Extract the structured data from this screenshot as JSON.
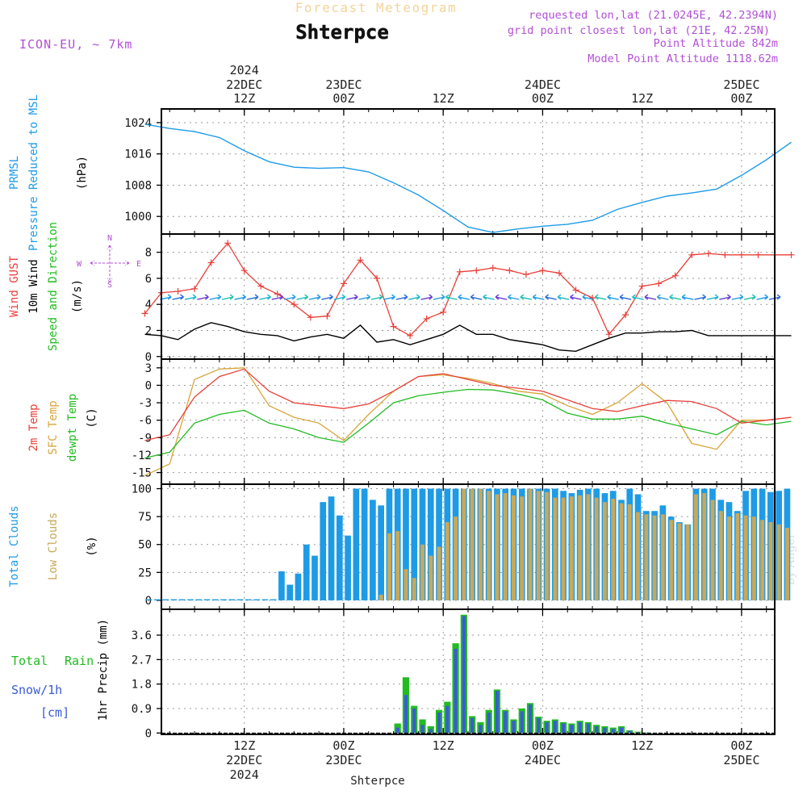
{
  "header": {
    "top_title": "Forecast Meteogram",
    "location": "Shterpce",
    "model": "ICON-EU, ~ 7km",
    "requested": "requested lon,lat (21.0245E, 42.2394N)",
    "grid": "grid point closest lon,lat (21E, 42.25N)",
    "point_alt": "Point Altitude 842m",
    "model_alt": "Model Point Altitude 1118.62m",
    "watermark": "by Angel",
    "bottom_label": "Shterpce"
  },
  "colors": {
    "pressure": "#1e9be6",
    "gust": "#e8403a",
    "wind": "#000000",
    "temp": "#e8403a",
    "sfc": "#d9a53a",
    "dewpt": "#22bb22",
    "total_clouds": "#1e9be6",
    "low_clouds": "#c8a85a",
    "rain": "#22bb22",
    "snow": "#3a5ad6",
    "purple": "#b24fd6"
  },
  "chart_data": [
    {
      "type": "line",
      "id": "pressure",
      "ylabel_lines": [
        "PRMSL",
        "Pressure Reduced to MSL"
      ],
      "unit": "(hPa)",
      "yticks": [
        1000,
        1008,
        1016,
        1024
      ],
      "ylim": [
        995.5,
        1027.5
      ],
      "x_hours": [
        0,
        3,
        6,
        9,
        12,
        15,
        18,
        21,
        24,
        27,
        30,
        33,
        36,
        39,
        42,
        45,
        48,
        51,
        54,
        57,
        60,
        63,
        66,
        69,
        72,
        75,
        78
      ],
      "values": [
        1023.6,
        1022.5,
        1021.7,
        1020.2,
        1016.8,
        1014.0,
        1012.6,
        1012.3,
        1012.5,
        1011.4,
        1008.6,
        1005.5,
        1001.5,
        997.3,
        995.9,
        996.8,
        997.5,
        998.0,
        999.0,
        1001.8,
        1003.6,
        1005.2,
        1006.0,
        1007.0,
        1010.5,
        1014.5,
        1019.0
      ]
    },
    {
      "type": "line",
      "id": "wind",
      "ylabel_lines": [
        "Wind GUST",
        "10m Wind",
        "Speed and Direction"
      ],
      "unit": "(m/s)",
      "compass": {
        "n": "N",
        "s": "S",
        "w": "W",
        "e": "E"
      },
      "yticks": [
        0,
        2,
        4,
        6,
        8
      ],
      "ylim": [
        -0.2,
        9.4
      ],
      "gust_hours": [
        0,
        2,
        4,
        6,
        8,
        10,
        12,
        14,
        16,
        18,
        20,
        22,
        24,
        26,
        28,
        30,
        32,
        34,
        36,
        38,
        40,
        42,
        44,
        46,
        48,
        50,
        52,
        54,
        56,
        58,
        60,
        62,
        64,
        66,
        68,
        70,
        72,
        74,
        76,
        78
      ],
      "gust": [
        3.3,
        4.9,
        5.0,
        5.2,
        7.2,
        8.7,
        6.6,
        5.4,
        4.8,
        4.0,
        3.0,
        3.1,
        5.6,
        7.4,
        6.0,
        2.3,
        1.6,
        2.9,
        3.4,
        6.5,
        6.6,
        6.8,
        6.6,
        6.3,
        6.6,
        6.4,
        5.1,
        4.5,
        1.7,
        3.2,
        5.4,
        5.6,
        6.2,
        7.8,
        7.9,
        7.8,
        7.8,
        7.8,
        7.8,
        7.8
      ],
      "wind_hours": [
        0,
        2,
        4,
        6,
        8,
        10,
        12,
        14,
        16,
        18,
        20,
        22,
        24,
        26,
        28,
        30,
        32,
        34,
        36,
        38,
        40,
        42,
        44,
        46,
        48,
        50,
        52,
        54,
        56,
        58,
        60,
        62,
        64,
        66,
        68,
        70,
        72,
        74,
        76,
        78
      ],
      "wind": [
        1.7,
        1.6,
        1.3,
        2.1,
        2.6,
        2.3,
        1.9,
        1.7,
        1.6,
        1.2,
        1.5,
        1.7,
        1.4,
        2.4,
        1.1,
        1.3,
        0.9,
        1.3,
        1.7,
        2.4,
        1.7,
        1.7,
        1.3,
        1.1,
        0.9,
        0.5,
        0.4,
        0.9,
        1.4,
        1.8,
        1.8,
        1.9,
        1.9,
        2.0,
        1.6,
        1.6,
        1.6,
        1.6,
        1.6,
        1.6
      ],
      "arrow_y": 4.5
    },
    {
      "type": "line",
      "id": "temperature",
      "ylabel_lines": [
        "2m Temp",
        "SFC Temp",
        "dewpt Temp"
      ],
      "unit": "(C)",
      "yticks": [
        -15,
        -12,
        -9,
        -6,
        -3,
        0,
        3
      ],
      "ylim": [
        -17,
        4.5
      ],
      "x_hours": [
        0,
        3,
        6,
        9,
        12,
        15,
        18,
        21,
        24,
        27,
        30,
        33,
        36,
        39,
        42,
        45,
        48,
        51,
        54,
        57,
        60,
        63,
        66,
        69,
        72,
        75,
        78
      ],
      "temp2m": [
        -9.5,
        -8.5,
        -2.0,
        1.5,
        2.8,
        -1.0,
        -3.0,
        -3.5,
        -4.0,
        -3.2,
        -1.0,
        1.5,
        2.0,
        1.0,
        0.0,
        -0.5,
        -1.0,
        -2.5,
        -4.0,
        -4.5,
        -3.5,
        -2.6,
        -2.8,
        -4.0,
        -6.5,
        -6.0,
        -5.5
      ],
      "sfc": [
        -15.5,
        -13.5,
        1.0,
        2.8,
        3.0,
        -3.5,
        -5.5,
        -6.5,
        -9.5,
        -5.0,
        -1.0,
        1.5,
        1.8,
        1.2,
        0.3,
        -1.0,
        -1.5,
        -3.5,
        -5.0,
        -3.0,
        0.3,
        -3.0,
        -10.0,
        -11.0,
        -6.0,
        -6.0,
        -5.5
      ],
      "dewpt": [
        -12.5,
        -11.5,
        -6.5,
        -5.0,
        -4.3,
        -6.5,
        -7.5,
        -9.0,
        -9.8,
        -6.5,
        -3.0,
        -1.8,
        -1.2,
        -0.7,
        -0.8,
        -1.5,
        -2.5,
        -4.8,
        -5.8,
        -5.8,
        -5.3,
        -6.5,
        -7.5,
        -8.5,
        -6.2,
        -6.8,
        -6.2
      ]
    },
    {
      "type": "bar",
      "id": "clouds",
      "ylabel_lines": [
        "Total Clouds",
        "Low Clouds"
      ],
      "unit": "(%)",
      "yticks": [
        0,
        25,
        50,
        75,
        100
      ],
      "ylim": [
        -8,
        104
      ],
      "x_hours": [
        0,
        1,
        2,
        3,
        4,
        5,
        6,
        7,
        8,
        9,
        10,
        11,
        12,
        13,
        14,
        15,
        16,
        17,
        18,
        19,
        20,
        21,
        22,
        23,
        24,
        25,
        26,
        27,
        28,
        29,
        30,
        31,
        32,
        33,
        34,
        35,
        36,
        37,
        38,
        39,
        40,
        41,
        42,
        43,
        44,
        45,
        46,
        47,
        48,
        49,
        50,
        51,
        52,
        53,
        54,
        55,
        56,
        57,
        58,
        59,
        60,
        61,
        62,
        63,
        64,
        65,
        66,
        67,
        68,
        69,
        70,
        71,
        72,
        73,
        74,
        75,
        76,
        77
      ],
      "total": [
        1,
        1,
        1,
        1,
        1,
        1,
        1,
        1,
        1,
        1,
        1,
        1,
        1,
        1,
        1,
        1,
        26,
        14,
        24,
        50,
        40,
        88,
        93,
        76,
        58,
        100,
        100,
        90,
        85,
        100,
        100,
        100,
        100,
        100,
        100,
        100,
        100,
        100,
        100,
        100,
        100,
        100,
        100,
        100,
        100,
        100,
        100,
        100,
        100,
        100,
        98,
        96,
        99,
        100,
        100,
        96,
        98,
        90,
        100,
        95,
        80,
        80,
        85,
        75,
        70,
        68,
        100,
        100,
        100,
        90,
        88,
        80,
        98,
        100,
        100,
        97,
        98,
        100
      ],
      "low": [
        0,
        0,
        0,
        0,
        0,
        0,
        0,
        0,
        0,
        0,
        0,
        0,
        0,
        0,
        0,
        0,
        0,
        0,
        0,
        0,
        0,
        0,
        0,
        0,
        0,
        0,
        0,
        0,
        5,
        60,
        62,
        28,
        20,
        50,
        40,
        48,
        70,
        75,
        100,
        100,
        100,
        98,
        95,
        96,
        94,
        93,
        100,
        98,
        97,
        92,
        92,
        93,
        94,
        95,
        92,
        88,
        91,
        87,
        86,
        79,
        77,
        76,
        77,
        72,
        69,
        68,
        95,
        96,
        90,
        80,
        75,
        78,
        76,
        75,
        72,
        70,
        68,
        65
      ]
    },
    {
      "type": "bar",
      "id": "precip",
      "ylabel_lines": [
        "1hr Precip (mm)"
      ],
      "legend": {
        "total": "Total",
        "rain": "Rain",
        "snow": "Snow/1h",
        "cm": "[cm]"
      },
      "yticks": [
        0,
        0.9,
        1.8,
        2.7,
        3.6
      ],
      "ylim": [
        -0.05,
        4.55
      ],
      "x_hours": [
        30,
        31,
        32,
        33,
        34,
        35,
        36,
        37,
        38,
        39,
        40,
        41,
        42,
        43,
        44,
        45,
        46,
        47,
        48,
        49,
        50,
        51,
        52,
        53,
        54,
        55,
        56,
        57,
        58,
        59,
        60
      ],
      "total": [
        0.35,
        2.05,
        1.0,
        0.5,
        0.25,
        0.85,
        1.15,
        3.3,
        4.35,
        0.62,
        0.4,
        0.85,
        1.6,
        0.85,
        0.5,
        0.9,
        1.1,
        0.6,
        0.45,
        0.5,
        0.4,
        0.35,
        0.45,
        0.4,
        0.3,
        0.25,
        0.2,
        0.25,
        0.1,
        0.05,
        0.02
      ],
      "snow": [
        0.2,
        1.4,
        0.9,
        0.3,
        0.15,
        0.75,
        1.0,
        3.1,
        4.3,
        0.55,
        0.3,
        0.75,
        1.55,
        0.8,
        0.45,
        0.8,
        1.05,
        0.55,
        0.4,
        0.45,
        0.35,
        0.3,
        0.4,
        0.35,
        0.25,
        0.2,
        0.15,
        0.2,
        0.08,
        0.03,
        0.01
      ]
    }
  ],
  "time_axis": {
    "top_year": "2024",
    "top_labels": [
      {
        "hour": 12,
        "line1": "22DEC",
        "line2": "12Z"
      },
      {
        "hour": 24,
        "line1": "23DEC",
        "line2": "00Z"
      },
      {
        "hour": 36,
        "line1": "",
        "line2": "12Z"
      },
      {
        "hour": 48,
        "line1": "24DEC",
        "line2": "00Z"
      },
      {
        "hour": 60,
        "line1": "",
        "line2": "12Z"
      },
      {
        "hour": 72,
        "line1": "25DEC",
        "line2": "00Z"
      }
    ],
    "bottom_year": "2024",
    "bottom_labels": [
      {
        "hour": 12,
        "line1": "12Z",
        "line2": "22DEC"
      },
      {
        "hour": 24,
        "line1": "00Z",
        "line2": "23DEC"
      },
      {
        "hour": 36,
        "line1": "12Z",
        "line2": ""
      },
      {
        "hour": 48,
        "line1": "00Z",
        "line2": "24DEC"
      },
      {
        "hour": 60,
        "line1": "12Z",
        "line2": ""
      },
      {
        "hour": 72,
        "line1": "00Z",
        "line2": "25DEC"
      }
    ]
  }
}
